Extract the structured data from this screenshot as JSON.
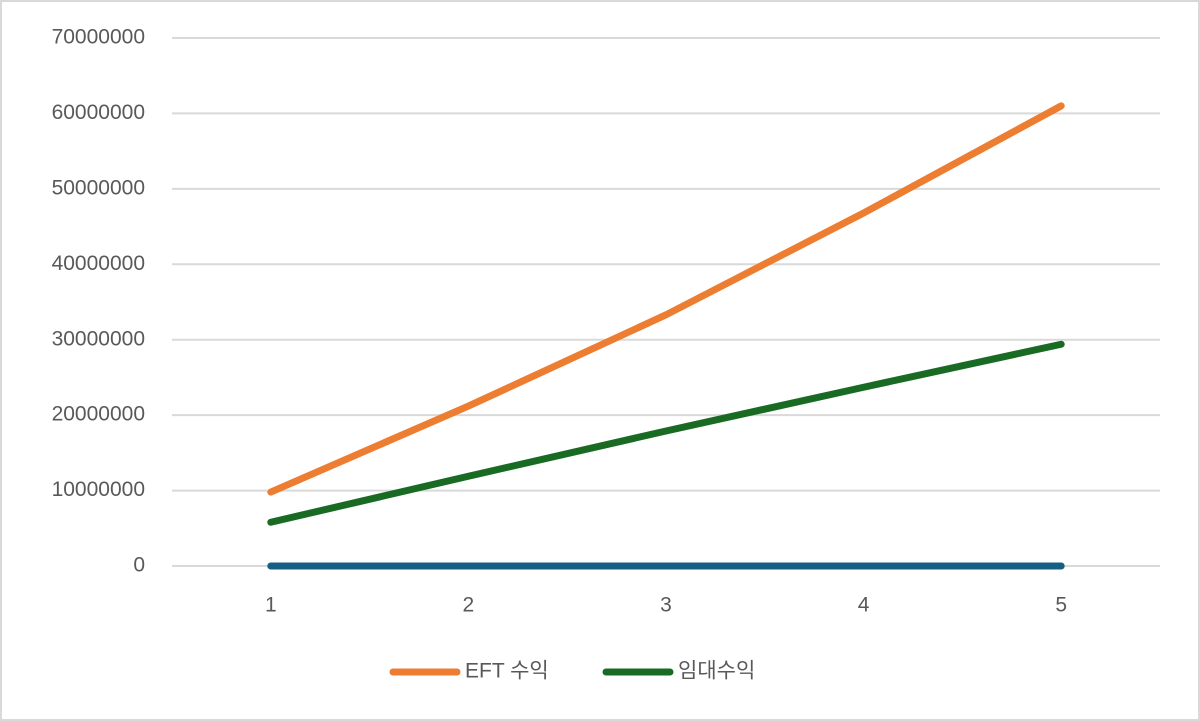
{
  "chart_data": {
    "type": "line",
    "categories": [
      "1",
      "2",
      "3",
      "4",
      "5"
    ],
    "series": [
      {
        "name": "EFT 수익",
        "color": "#ed7d31",
        "values": [
          9800000,
          21200000,
          33300000,
          46800000,
          61000000
        ]
      },
      {
        "name": "임대수익",
        "color": "#196b24",
        "values": [
          5800000,
          11900000,
          17900000,
          23700000,
          29400000
        ]
      },
      {
        "color": "#156082",
        "values": [
          0,
          0,
          0,
          0,
          0
        ]
      }
    ],
    "ylim": [
      0,
      70000000
    ],
    "yticks": [
      0,
      10000000,
      20000000,
      30000000,
      40000000,
      50000000,
      60000000,
      70000000
    ],
    "grid": true,
    "legend": "bottom"
  }
}
